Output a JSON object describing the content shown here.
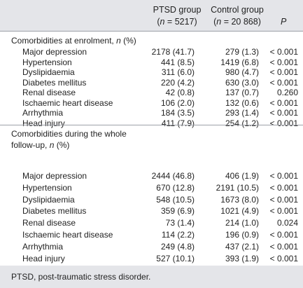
{
  "header": {
    "col1_title": "PTSD group",
    "col1_sub_n": "n",
    "col1_sub_val": " = 5217)",
    "col2_title": "Control group",
    "col2_sub_n": "n",
    "col2_sub_val": " = 20 868)",
    "col3_title": "P",
    "open_paren": "("
  },
  "section1": {
    "title_text": "Comorbidities at enrolment, ",
    "title_n": "n",
    "title_pct": " (%)",
    "rows": [
      {
        "label": "Major depression",
        "ptsd": "2178 (41.7)",
        "control": "279 (1.3)",
        "p": "< 0.001"
      },
      {
        "label": "Hypertension",
        "ptsd": "441 (8.5)",
        "control": "1419 (6.8)",
        "p": "< 0.001"
      },
      {
        "label": "Dyslipidaemia",
        "ptsd": "311 (6.0)",
        "control": "980 (4.7)",
        "p": "< 0.001"
      },
      {
        "label": "Diabetes mellitus",
        "ptsd": "220 (4.2)",
        "control": "630 (3.0)",
        "p": "< 0.001"
      },
      {
        "label": "Renal disease",
        "ptsd": "42 (0.8)",
        "control": "137 (0.7)",
        "p": "0.260"
      },
      {
        "label": "Ischaemic heart disease",
        "ptsd": "106 (2.0)",
        "control": "132 (0.6)",
        "p": "< 0.001"
      },
      {
        "label": "Arrhythmia",
        "ptsd": "184 (3.5)",
        "control": "293 (1.4)",
        "p": "< 0.001"
      },
      {
        "label": "Head injury",
        "ptsd": "411 (7.9)",
        "control": "254 (1.2)",
        "p": "< 0.001"
      }
    ]
  },
  "section2": {
    "title_line1": "Comorbidities during the whole",
    "title_line2_text": "follow-up, ",
    "title_n": "n",
    "title_pct": " (%)",
    "rows": [
      {
        "label": "Major depression",
        "ptsd": "2444 (46.8)",
        "control": "406 (1.9)",
        "p": "< 0.001"
      },
      {
        "label": "Hypertension",
        "ptsd": "670 (12.8)",
        "control": "2191 (10.5)",
        "p": "< 0.001"
      },
      {
        "label": "Dyslipidaemia",
        "ptsd": "548 (10.5)",
        "control": "1673 (8.0)",
        "p": "< 0.001"
      },
      {
        "label": "Diabetes mellitus",
        "ptsd": "359 (6.9)",
        "control": "1021 (4.9)",
        "p": "< 0.001"
      },
      {
        "label": "Renal disease",
        "ptsd": "73 (1.4)",
        "control": "214 (1.0)",
        "p": "0.024"
      },
      {
        "label": "Ischaemic heart disease",
        "ptsd": "114 (2.2)",
        "control": "196 (0.9)",
        "p": "< 0.001"
      },
      {
        "label": "Arrhythmia",
        "ptsd": "249 (4.8)",
        "control": "437 (2.1)",
        "p": "< 0.001"
      },
      {
        "label": "Head injury",
        "ptsd": "527 (10.1)",
        "control": "393 (1.9)",
        "p": "< 0.001"
      }
    ]
  },
  "footnote": "PTSD, post-traumatic stress disorder.",
  "colors": {
    "band": "#e4e5e9",
    "rule": "#9ea1a8",
    "text": "#222222"
  }
}
